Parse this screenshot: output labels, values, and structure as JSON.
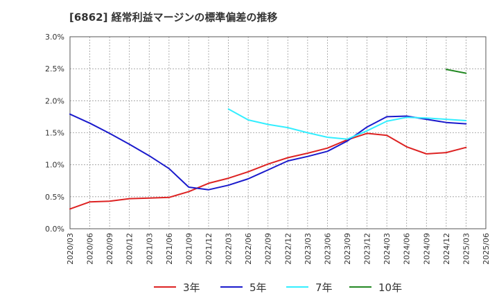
{
  "chart_data": {
    "type": "line",
    "title": "[6862]  経常利益マージンの標準偏差の推移",
    "xlabel": "",
    "ylabel": "",
    "ylim": [
      0,
      3.0
    ],
    "grid": true,
    "legend_position": "bottom",
    "x_ticks": [
      "2020/03",
      "2020/06",
      "2020/09",
      "2020/12",
      "2021/03",
      "2021/06",
      "2021/09",
      "2021/12",
      "2022/03",
      "2022/06",
      "2022/09",
      "2022/12",
      "2023/03",
      "2023/06",
      "2023/09",
      "2023/12",
      "2024/03",
      "2024/06",
      "2024/09",
      "2024/12",
      "2025/03",
      "2025/06"
    ],
    "y_ticks": [
      "0.0%",
      "0.5%",
      "1.0%",
      "1.5%",
      "2.0%",
      "2.5%",
      "3.0%"
    ],
    "series": [
      {
        "name": "3年",
        "color": "#dd2222",
        "x": [
          "2020/03",
          "2020/06",
          "2020/09",
          "2020/12",
          "2021/03",
          "2021/06",
          "2021/09",
          "2021/12",
          "2022/03",
          "2022/06",
          "2022/09",
          "2022/12",
          "2023/03",
          "2023/06",
          "2023/09",
          "2023/12",
          "2024/03",
          "2024/06",
          "2024/09",
          "2024/12",
          "2025/03"
        ],
        "values": [
          0.31,
          0.42,
          0.43,
          0.47,
          0.48,
          0.49,
          0.58,
          0.71,
          0.79,
          0.89,
          1.01,
          1.11,
          1.18,
          1.26,
          1.39,
          1.49,
          1.46,
          1.28,
          1.17,
          1.19,
          1.27
        ]
      },
      {
        "name": "5年",
        "color": "#1a1acc",
        "x": [
          "2020/03",
          "2020/06",
          "2020/09",
          "2020/12",
          "2021/03",
          "2021/06",
          "2021/09",
          "2021/12",
          "2022/03",
          "2022/06",
          "2022/09",
          "2022/12",
          "2023/03",
          "2023/06",
          "2023/09",
          "2023/12",
          "2024/03",
          "2024/06",
          "2024/09",
          "2024/12",
          "2025/03"
        ],
        "values": [
          1.79,
          1.65,
          1.49,
          1.32,
          1.14,
          0.94,
          0.65,
          0.61,
          0.68,
          0.78,
          0.92,
          1.06,
          1.13,
          1.21,
          1.37,
          1.59,
          1.75,
          1.76,
          1.71,
          1.66,
          1.64
        ]
      },
      {
        "name": "7年",
        "color": "#33eeff",
        "x": [
          "2022/03",
          "2022/06",
          "2022/09",
          "2022/12",
          "2023/03",
          "2023/06",
          "2023/09",
          "2023/12",
          "2024/03",
          "2024/06",
          "2024/09",
          "2024/12",
          "2025/03"
        ],
        "values": [
          1.87,
          1.7,
          1.63,
          1.58,
          1.5,
          1.43,
          1.4,
          1.53,
          1.68,
          1.74,
          1.73,
          1.71,
          1.69
        ]
      },
      {
        "name": "10年",
        "color": "#228822",
        "x": [
          "2024/12",
          "2025/03"
        ],
        "values": [
          2.49,
          2.43
        ]
      }
    ]
  }
}
